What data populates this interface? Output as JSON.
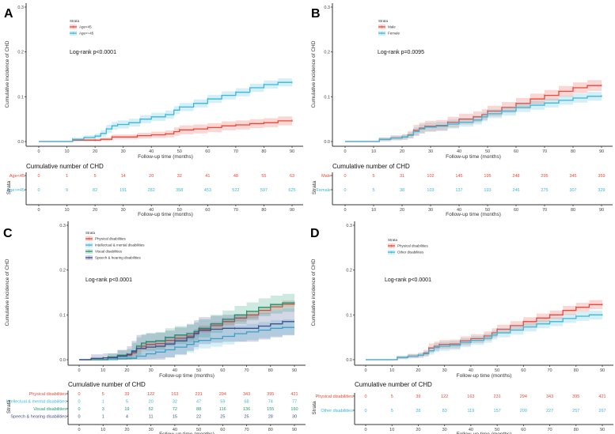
{
  "chart_data": [
    {
      "type": "line",
      "panel": "A",
      "title": "",
      "xlabel": "Follow-up time (months)",
      "ylabel": "Cumulative incidence of CHD",
      "xlim": [
        0,
        90
      ],
      "ylim": [
        0,
        0.3
      ],
      "x_ticks": [
        0,
        10,
        20,
        30,
        40,
        50,
        60,
        70,
        80,
        90
      ],
      "y_ticks": [
        "0.0",
        "0.1",
        "0.2",
        "0.3"
      ],
      "legend_title": "Strata",
      "legend_position": "top-left",
      "annotation": "Log-rank p<0.0001",
      "series": [
        {
          "name": "Age<45",
          "color": "#e8493a",
          "x": [
            0,
            8,
            12,
            16,
            20,
            22,
            26,
            30,
            35,
            40,
            45,
            48,
            50,
            55,
            60,
            65,
            70,
            75,
            80,
            85,
            90
          ],
          "y": [
            0,
            0,
            0.003,
            0.003,
            0.003,
            0.005,
            0.01,
            0.01,
            0.013,
            0.015,
            0.017,
            0.022,
            0.026,
            0.028,
            0.031,
            0.035,
            0.037,
            0.04,
            0.042,
            0.046,
            0.047
          ],
          "ci": 0.01
        },
        {
          "name": "Age>=45",
          "color": "#3bb6d8",
          "x": [
            0,
            8,
            12,
            16,
            20,
            22,
            24,
            26,
            28,
            32,
            36,
            40,
            45,
            48,
            50,
            55,
            60,
            65,
            70,
            75,
            80,
            85,
            90
          ],
          "y": [
            0,
            0,
            0.005,
            0.009,
            0.012,
            0.018,
            0.028,
            0.035,
            0.038,
            0.042,
            0.05,
            0.055,
            0.06,
            0.07,
            0.077,
            0.085,
            0.095,
            0.103,
            0.11,
            0.12,
            0.127,
            0.132,
            0.132
          ],
          "ci": 0.009
        }
      ],
      "risk_table": {
        "title": "Cumulative number of CHD",
        "ylabel": "Strata",
        "rows": [
          {
            "label": "Age<45",
            "color": "#e8493a",
            "values": [
              0,
              1,
              5,
              14,
              20,
              32,
              41,
              48,
              55,
              63
            ]
          },
          {
            "label": "Age>=45",
            "color": "#3bb6d8",
            "values": [
              0,
              9,
              82,
              191,
              282,
              358,
              453,
              522,
              597,
              625
            ]
          }
        ]
      }
    },
    {
      "type": "line",
      "panel": "B",
      "xlabel": "Follow-up time (months)",
      "ylabel": "Cumulative incidence of CHD",
      "xlim": [
        0,
        90
      ],
      "ylim": [
        0,
        0.3
      ],
      "x_ticks": [
        0,
        10,
        20,
        30,
        40,
        50,
        60,
        70,
        80,
        90
      ],
      "y_ticks": [
        "0.0",
        "0.1",
        "0.2",
        "0.3"
      ],
      "legend_title": "Strata",
      "legend_position": "top-left",
      "annotation": "Log-rank p=0.0095",
      "series": [
        {
          "name": "Male",
          "color": "#e8493a",
          "x": [
            0,
            8,
            12,
            16,
            20,
            22,
            24,
            26,
            28,
            32,
            36,
            40,
            45,
            48,
            50,
            55,
            60,
            65,
            70,
            75,
            80,
            85,
            90
          ],
          "y": [
            0,
            0,
            0.005,
            0.008,
            0.01,
            0.015,
            0.025,
            0.03,
            0.034,
            0.036,
            0.043,
            0.05,
            0.055,
            0.06,
            0.068,
            0.076,
            0.085,
            0.095,
            0.103,
            0.112,
            0.12,
            0.125,
            0.125
          ],
          "ci": 0.012
        },
        {
          "name": "Female",
          "color": "#3bb6d8",
          "x": [
            0,
            8,
            12,
            16,
            20,
            22,
            24,
            26,
            28,
            32,
            36,
            40,
            45,
            48,
            50,
            55,
            60,
            65,
            70,
            75,
            80,
            85,
            90
          ],
          "y": [
            0,
            0,
            0.005,
            0.008,
            0.01,
            0.014,
            0.022,
            0.028,
            0.032,
            0.034,
            0.039,
            0.043,
            0.048,
            0.055,
            0.062,
            0.068,
            0.076,
            0.081,
            0.086,
            0.092,
            0.097,
            0.101,
            0.102
          ],
          "ci": 0.01
        }
      ],
      "risk_table": {
        "title": "Cumulative number of CHD",
        "ylabel": "Strata",
        "rows": [
          {
            "label": "Male",
            "color": "#e8493a",
            "values": [
              0,
              5,
              31,
              102,
              145,
              195,
              248,
              295,
              345,
              359
            ]
          },
          {
            "label": "Female",
            "color": "#3bb6d8",
            "values": [
              0,
              5,
              38,
              103,
              137,
              193,
              246,
              275,
              307,
              329
            ]
          }
        ]
      }
    },
    {
      "type": "line",
      "panel": "C",
      "xlabel": "Follow-up time (months)",
      "ylabel": "Cumulative incidence of CHD",
      "xlim": [
        0,
        90
      ],
      "ylim": [
        0,
        0.3
      ],
      "x_ticks": [
        0,
        10,
        20,
        30,
        40,
        50,
        60,
        70,
        80,
        90
      ],
      "y_ticks": [
        "0.0",
        "0.1",
        "0.2",
        "0.3"
      ],
      "legend_title": "Strata",
      "legend_position": "top-left",
      "annotation": "Log-rank p<0.0001",
      "series": [
        {
          "name": "Physical disabilities",
          "color": "#e8493a",
          "x": [
            0,
            8,
            12,
            16,
            20,
            22,
            24,
            26,
            28,
            32,
            36,
            40,
            45,
            48,
            50,
            55,
            60,
            65,
            70,
            75,
            80,
            85,
            90
          ],
          "y": [
            0,
            0,
            0.005,
            0.008,
            0.01,
            0.015,
            0.025,
            0.03,
            0.034,
            0.036,
            0.043,
            0.048,
            0.053,
            0.06,
            0.068,
            0.076,
            0.085,
            0.093,
            0.1,
            0.11,
            0.118,
            0.124,
            0.124
          ],
          "ci": 0.008
        },
        {
          "name": "Intellectual & mental disabilities",
          "color": "#3bb6d8",
          "x": [
            0,
            10,
            16,
            20,
            24,
            28,
            32,
            36,
            40,
            45,
            48,
            50,
            55,
            60,
            65,
            70,
            75,
            80,
            85,
            90
          ],
          "y": [
            0,
            0,
            0.002,
            0.003,
            0.008,
            0.013,
            0.017,
            0.022,
            0.028,
            0.034,
            0.04,
            0.043,
            0.047,
            0.052,
            0.058,
            0.062,
            0.066,
            0.07,
            0.072,
            0.072
          ],
          "ci": 0.018
        },
        {
          "name": "Visual disabilities",
          "color": "#1d9a72",
          "x": [
            0,
            8,
            12,
            16,
            20,
            22,
            24,
            26,
            28,
            32,
            36,
            40,
            45,
            48,
            50,
            55,
            60,
            65,
            70,
            75,
            80,
            85,
            90
          ],
          "y": [
            0,
            0,
            0.006,
            0.01,
            0.012,
            0.02,
            0.03,
            0.037,
            0.04,
            0.042,
            0.05,
            0.055,
            0.058,
            0.063,
            0.07,
            0.08,
            0.09,
            0.1,
            0.108,
            0.117,
            0.123,
            0.127,
            0.127
          ],
          "ci": 0.02
        },
        {
          "name": "Speech & hearing disabilities",
          "color": "#3d4f8f",
          "x": [
            0,
            5,
            10,
            16,
            20,
            22,
            24,
            28,
            32,
            36,
            40,
            45,
            48,
            50,
            55,
            60,
            65,
            70,
            75,
            80,
            85,
            90
          ],
          "y": [
            0,
            0.003,
            0.004,
            0.008,
            0.012,
            0.018,
            0.025,
            0.028,
            0.03,
            0.035,
            0.042,
            0.05,
            0.058,
            0.065,
            0.068,
            0.07,
            0.07,
            0.07,
            0.075,
            0.08,
            0.085,
            0.085
          ],
          "ci": 0.03
        }
      ],
      "risk_table": {
        "title": "Cumulative number of CHD",
        "ylabel": "Strata",
        "rows": [
          {
            "label": "Physical disabilities",
            "color": "#e8493a",
            "values": [
              0,
              5,
              39,
              122,
              163,
              231,
              294,
              343,
              395,
              421
            ]
          },
          {
            "label": "Intellectual & mental disabilities",
            "color": "#3bb6d8",
            "values": [
              0,
              1,
              5,
              20,
              32,
              47,
              59,
              68,
              74,
              77
            ]
          },
          {
            "label": "Visual disabilities",
            "color": "#1d9a72",
            "values": [
              0,
              3,
              19,
              52,
              72,
              88,
              116,
              136,
              155,
              160
            ]
          },
          {
            "label": "Speech & hearing disabilities",
            "color": "#3d4f8f",
            "values": [
              0,
              1,
              4,
              11,
              15,
              22,
              25,
              25,
              28,
              30
            ]
          }
        ]
      }
    },
    {
      "type": "line",
      "panel": "D",
      "xlabel": "Follow-up time (months)",
      "ylabel": "Cumulative incidence of CHD",
      "xlim": [
        0,
        90
      ],
      "ylim": [
        0,
        0.3
      ],
      "x_ticks": [
        0,
        10,
        20,
        30,
        40,
        50,
        60,
        70,
        80,
        90
      ],
      "y_ticks": [
        "0.0",
        "0.1",
        "0.2",
        "0.3"
      ],
      "legend_title": "Strata",
      "legend_position": "top-left",
      "annotation": "Log-rank p<0.0001",
      "series": [
        {
          "name": "Physical disabilities",
          "color": "#e8493a",
          "x": [
            0,
            8,
            12,
            16,
            20,
            22,
            24,
            26,
            28,
            32,
            36,
            40,
            45,
            48,
            50,
            55,
            60,
            65,
            70,
            75,
            80,
            85,
            90
          ],
          "y": [
            0,
            0,
            0.005,
            0.008,
            0.01,
            0.015,
            0.026,
            0.03,
            0.034,
            0.035,
            0.042,
            0.047,
            0.053,
            0.06,
            0.068,
            0.076,
            0.085,
            0.093,
            0.1,
            0.11,
            0.117,
            0.123,
            0.123
          ],
          "ci": 0.01
        },
        {
          "name": "Other disabilities",
          "color": "#3bb6d8",
          "x": [
            0,
            8,
            12,
            16,
            20,
            22,
            24,
            26,
            28,
            32,
            36,
            40,
            45,
            48,
            50,
            55,
            60,
            65,
            70,
            75,
            80,
            85,
            90
          ],
          "y": [
            0,
            0,
            0.005,
            0.008,
            0.01,
            0.013,
            0.02,
            0.027,
            0.03,
            0.032,
            0.038,
            0.043,
            0.048,
            0.055,
            0.06,
            0.066,
            0.073,
            0.08,
            0.085,
            0.092,
            0.097,
            0.1,
            0.1
          ],
          "ci": 0.01
        }
      ],
      "risk_table": {
        "title": "Cumulative number of CHD",
        "ylabel": "Strata",
        "rows": [
          {
            "label": "Physical disabilities",
            "color": "#e8493a",
            "values": [
              0,
              5,
              39,
              122,
              163,
              231,
              294,
              343,
              395,
              421
            ]
          },
          {
            "label": "Other disabilities",
            "color": "#3bb6d8",
            "values": [
              0,
              5,
              28,
              83,
              119,
              157,
              200,
              227,
              257,
              267
            ]
          }
        ]
      }
    }
  ]
}
